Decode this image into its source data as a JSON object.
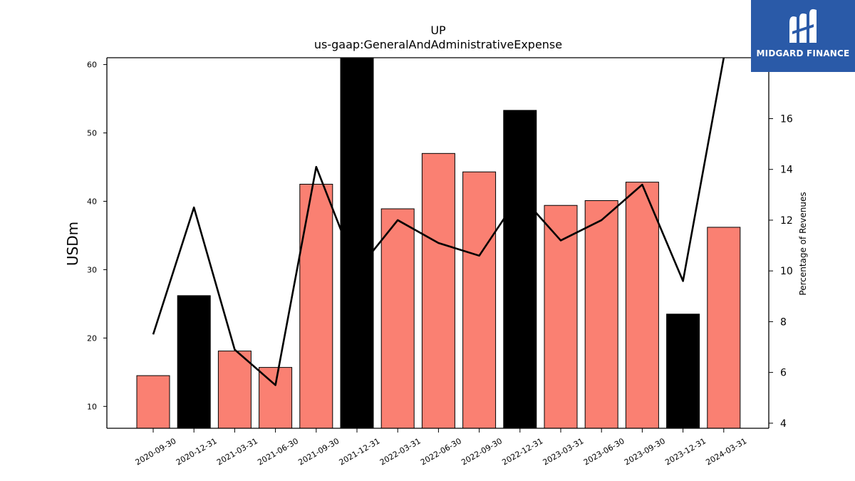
{
  "chart_data": {
    "type": "bar",
    "title": "UP",
    "subtitle": "us-gaap:GeneralAndAdministrativeExpense",
    "ylabel": "USDm",
    "y2label": "Percentage of Revenues",
    "categories": [
      "2020-09-30",
      "2020-12-31",
      "2021-03-31",
      "2021-06-30",
      "2021-09-30",
      "2021-12-31",
      "2022-03-31",
      "2022-06-30",
      "2022-09-30",
      "2022-12-31",
      "2023-03-31",
      "2023-06-30",
      "2023-09-30",
      "2023-12-31",
      "2024-03-31"
    ],
    "series": [
      {
        "values": [
          14.5,
          26.2,
          18.1,
          15.7,
          42.5,
          61.5,
          38.9,
          47.0,
          44.3,
          53.3,
          39.4,
          40.1,
          42.8,
          23.5,
          36.2
        ],
        "highlight": [
          false,
          true,
          false,
          false,
          false,
          true,
          false,
          false,
          false,
          true,
          false,
          false,
          false,
          true,
          false
        ],
        "color": "#fa8072",
        "highlight_color": "#000000"
      },
      {
        "axis": "right",
        "type": "line",
        "values": [
          7.5,
          12.5,
          6.9,
          5.5,
          14.1,
          10.0,
          12.0,
          11.1,
          10.6,
          13.0,
          11.2,
          12.0,
          13.4,
          9.6,
          18.8
        ],
        "color": "#000000"
      }
    ],
    "ylim": [
      6.8,
      61.0
    ],
    "y2lim": [
      3.8,
      18.4
    ],
    "yticks": [
      10,
      20,
      30,
      40,
      50,
      60
    ],
    "y2ticks": [
      4,
      6,
      8,
      10,
      12,
      14,
      16
    ]
  },
  "logo": {
    "text": "MIDGARD FINANCE",
    "color": "#2a5aa8"
  }
}
